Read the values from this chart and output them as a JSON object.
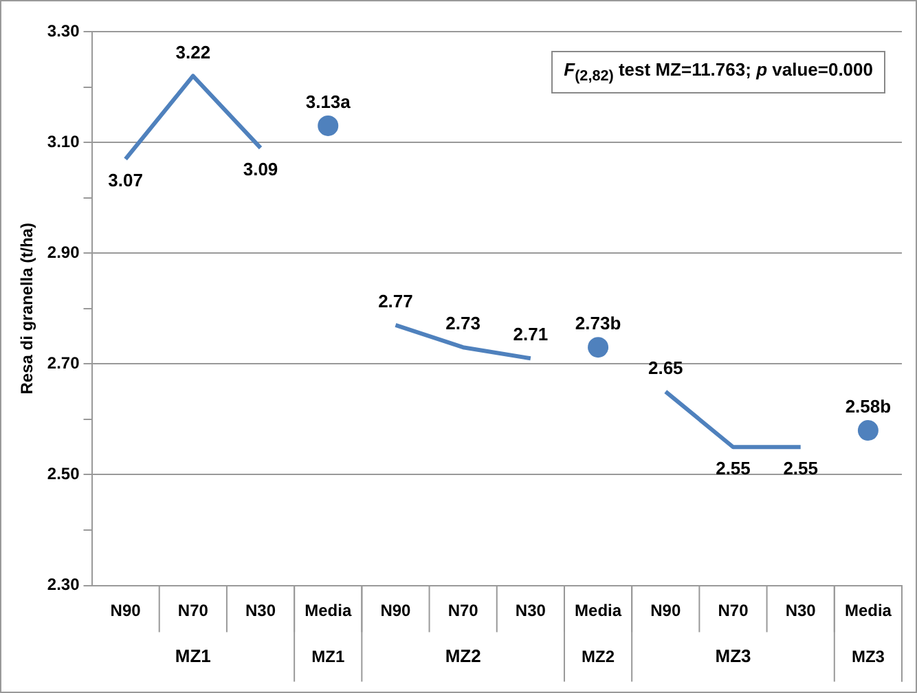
{
  "chart_data": {
    "type": "line",
    "ylabel": "Resa di granella (t/ha)",
    "categories": [
      "N90",
      "N70",
      "N30",
      "Media MZ1",
      "N90",
      "N70",
      "N30",
      "Media MZ2",
      "N90",
      "N70",
      "N30",
      "Media MZ3"
    ],
    "series": [
      {
        "color": "#4f81bd",
        "marker": "none",
        "values": [
          3.07,
          3.22,
          3.09,
          null,
          null,
          null,
          null,
          null,
          null,
          null,
          null,
          null
        ],
        "value_labels": [
          "3.07",
          "3.22",
          "3.09",
          null,
          null,
          null,
          null,
          null,
          null,
          null,
          null,
          null
        ]
      },
      {
        "color": "#4f81bd",
        "marker": "none",
        "values": [
          null,
          null,
          null,
          null,
          2.77,
          2.73,
          2.71,
          null,
          null,
          null,
          null,
          null
        ],
        "value_labels": [
          null,
          null,
          null,
          null,
          "2.77",
          "2.73",
          "2.71",
          null,
          null,
          null,
          null,
          null
        ]
      },
      {
        "color": "#4f81bd",
        "marker": "none",
        "values": [
          null,
          null,
          null,
          null,
          null,
          null,
          null,
          null,
          2.65,
          2.55,
          2.55,
          null
        ],
        "value_labels": [
          null,
          null,
          null,
          null,
          null,
          null,
          null,
          null,
          "2.65",
          "2.55",
          "2.55",
          null
        ]
      },
      {
        "type": "scatter",
        "color": "#4f81bd",
        "marker": "circle",
        "values": [
          null,
          null,
          null,
          3.13,
          null,
          null,
          null,
          2.73,
          null,
          null,
          null,
          2.58
        ],
        "value_labels": [
          null,
          null,
          null,
          "3.13a",
          null,
          null,
          null,
          "2.73b",
          null,
          null,
          null,
          "2.58b"
        ]
      }
    ],
    "ylim": [
      2.3,
      3.3
    ],
    "yticks": [
      {
        "value": 2.3,
        "label": "2.30"
      },
      {
        "value": 2.4,
        "label": null
      },
      {
        "value": 2.5,
        "label": "2.50"
      },
      {
        "value": 2.6,
        "label": null
      },
      {
        "value": 2.7,
        "label": "2.70"
      },
      {
        "value": 2.8,
        "label": null
      },
      {
        "value": 2.9,
        "label": "2.90"
      },
      {
        "value": 3.0,
        "label": null
      },
      {
        "value": 3.1,
        "label": "3.10"
      },
      {
        "value": 3.2,
        "label": null
      },
      {
        "value": 3.3,
        "label": "3.30"
      }
    ],
    "grid": "y",
    "legend": false,
    "annotations": [
      "F$_{(2,82)}$ test MZ=11.763; p value=0.000",
      "MZ1",
      "MZ2",
      "MZ3"
    ]
  }
}
